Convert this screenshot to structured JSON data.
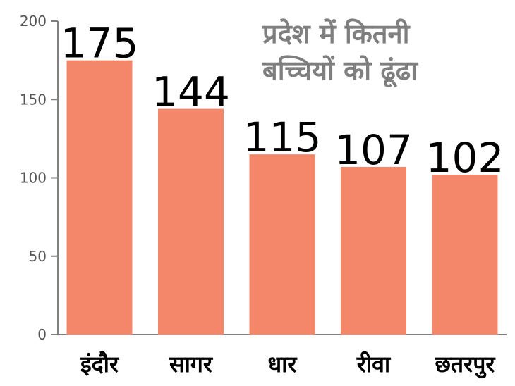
{
  "chart_data": {
    "type": "bar",
    "title_lines": [
      "प्रदेश में कितनी",
      "बच्चियों को ढूंढा"
    ],
    "categories": [
      "इंदौर",
      "सागर",
      "धार",
      "रीवा",
      "छतरपुर"
    ],
    "values": [
      175,
      144,
      115,
      107,
      102
    ],
    "data_labels": [
      "175",
      "144",
      "115",
      "107",
      "102"
    ],
    "ylim": [
      0,
      200
    ],
    "yticks": [
      0,
      50,
      100,
      150,
      200
    ],
    "ytick_labels": [
      "0",
      "50",
      "100",
      "150",
      "200"
    ],
    "xlabel": "",
    "ylabel": "",
    "grid": false,
    "legend": "none",
    "bar_color": "#f4876a",
    "axis_color": "#808080",
    "title_color": "#7f7f7f"
  }
}
